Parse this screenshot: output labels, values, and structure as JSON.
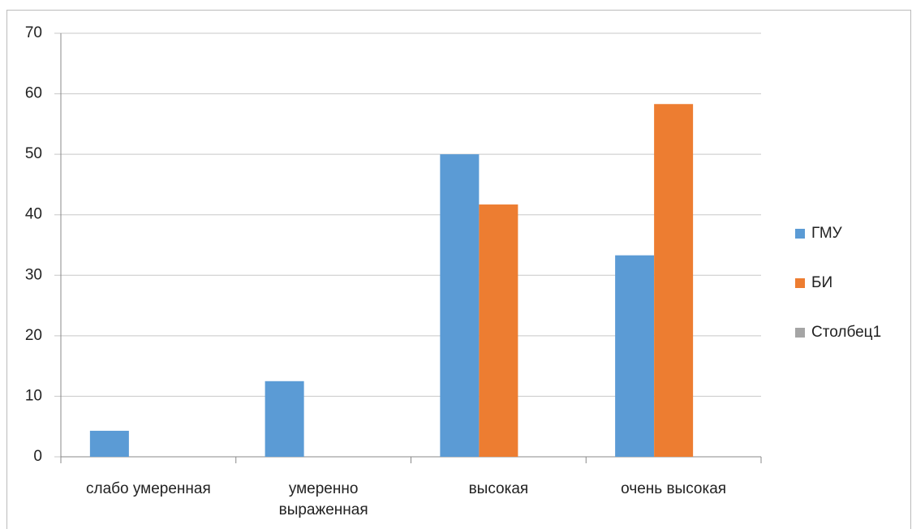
{
  "chart_data": {
    "type": "bar",
    "categories": [
      "слабо умеренная",
      "умеренно выраженная",
      "высокая",
      "очень высокая"
    ],
    "series": [
      {
        "name": "ГМУ",
        "color": "#5b9bd5",
        "values": [
          4.3,
          12.5,
          50,
          33.3
        ]
      },
      {
        "name": "БИ",
        "color": "#ed7d31",
        "values": [
          0,
          0,
          41.7,
          58.3
        ]
      },
      {
        "name": "Столбец1",
        "color": "#a5a5a5",
        "values": [
          null,
          null,
          null,
          null
        ]
      }
    ],
    "ylim": [
      0,
      70
    ],
    "yticks": [
      0,
      10,
      20,
      30,
      40,
      50,
      60,
      70
    ],
    "grid": true,
    "legend": "right"
  }
}
